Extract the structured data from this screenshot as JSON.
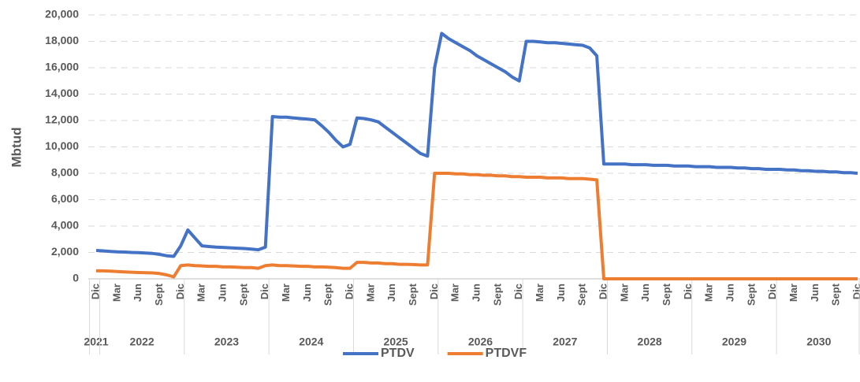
{
  "chart_data": {
    "type": "line",
    "y_label": "Mbtud",
    "categories": [
      "Dic",
      null,
      null,
      "Mar",
      null,
      null,
      "Jun",
      null,
      null,
      "Sept",
      null,
      null,
      "Dic",
      null,
      null,
      "Mar",
      null,
      null,
      "Jun",
      null,
      null,
      "Sept",
      null,
      null,
      "Dic",
      null,
      null,
      "Mar",
      null,
      null,
      "Jun",
      null,
      null,
      "Sept",
      null,
      null,
      "Dic",
      null,
      null,
      "Mar",
      null,
      null,
      "Jun",
      null,
      null,
      "Sept",
      null,
      null,
      "Dic",
      null,
      null,
      "Mar",
      null,
      null,
      "Jun",
      null,
      null,
      "Sept",
      null,
      null,
      "Dic",
      null,
      null,
      "Mar",
      null,
      null,
      "Jun",
      null,
      null,
      "Sept",
      null,
      null,
      "Dic",
      null,
      null,
      "Mar",
      null,
      null,
      "Jun",
      null,
      null,
      "Sept",
      null,
      null,
      "Dic",
      null,
      null,
      "Mar",
      null,
      null,
      "Jun",
      null,
      null,
      "Sept",
      null,
      null,
      "Dic",
      null,
      null,
      "Mar",
      null,
      null,
      "Jun",
      null,
      null,
      "Sept",
      null,
      null,
      "Dic"
    ],
    "groups": [
      {
        "label": "2021",
        "count": 1
      },
      {
        "label": "2022",
        "count": 12
      },
      {
        "label": "2023",
        "count": 12
      },
      {
        "label": "2024",
        "count": 12
      },
      {
        "label": "2025",
        "count": 12
      },
      {
        "label": "2026",
        "count": 12
      },
      {
        "label": "2027",
        "count": 12
      },
      {
        "label": "2028",
        "count": 12
      },
      {
        "label": "2029",
        "count": 12
      },
      {
        "label": "2030",
        "count": 12
      }
    ],
    "series": [
      {
        "name": "PTDV",
        "color": "#4472c4",
        "values": [
          2150,
          2120,
          2080,
          2050,
          2030,
          2000,
          1980,
          1950,
          1920,
          1850,
          1750,
          1700,
          2500,
          3700,
          3100,
          2500,
          2450,
          2400,
          2380,
          2350,
          2320,
          2300,
          2250,
          2200,
          2400,
          12300,
          12250,
          12250,
          12200,
          12150,
          12100,
          12050,
          11600,
          11100,
          10500,
          10000,
          10200,
          12200,
          12150,
          12050,
          11900,
          11500,
          11100,
          10700,
          10300,
          9900,
          9500,
          9300,
          16000,
          18600,
          18200,
          17900,
          17600,
          17300,
          16900,
          16600,
          16300,
          16000,
          15700,
          15300,
          15000,
          18000,
          18000,
          17950,
          17900,
          17900,
          17850,
          17800,
          17750,
          17700,
          17500,
          16900,
          8700,
          8700,
          8700,
          8700,
          8650,
          8650,
          8650,
          8600,
          8600,
          8600,
          8550,
          8550,
          8550,
          8500,
          8500,
          8500,
          8450,
          8450,
          8450,
          8400,
          8400,
          8350,
          8350,
          8300,
          8300,
          8300,
          8250,
          8250,
          8200,
          8200,
          8150,
          8150,
          8100,
          8100,
          8050,
          8050,
          8000
        ]
      },
      {
        "name": "PTDVF",
        "color": "#ed7d31",
        "values": [
          600,
          600,
          580,
          550,
          520,
          500,
          480,
          460,
          450,
          400,
          300,
          150,
          1000,
          1050,
          1000,
          980,
          950,
          950,
          900,
          900,
          880,
          850,
          850,
          800,
          1000,
          1050,
          1000,
          1000,
          980,
          950,
          950,
          900,
          900,
          880,
          850,
          800,
          800,
          1250,
          1250,
          1200,
          1200,
          1150,
          1150,
          1100,
          1100,
          1080,
          1050,
          1050,
          8000,
          8000,
          8000,
          7950,
          7950,
          7900,
          7900,
          7850,
          7850,
          7800,
          7800,
          7750,
          7750,
          7700,
          7700,
          7700,
          7650,
          7650,
          7650,
          7600,
          7600,
          7600,
          7550,
          7500,
          0,
          0,
          0,
          0,
          0,
          0,
          0,
          0,
          0,
          0,
          0,
          0,
          0,
          0,
          0,
          0,
          0,
          0,
          0,
          0,
          0,
          0,
          0,
          0,
          0,
          0,
          0,
          0,
          0,
          0,
          0,
          0,
          0,
          0,
          0,
          0,
          0
        ]
      }
    ],
    "ylim": [
      0,
      20000
    ],
    "yticks": [
      0,
      {
        "value": 2000,
        "label": "2,000"
      },
      {
        "value": 4000,
        "label": "4,000"
      },
      {
        "value": 6000,
        "label": "6,000"
      },
      {
        "value": 8000,
        "label": "8,000"
      },
      {
        "value": 10000,
        "label": "10,000"
      },
      {
        "value": 12000,
        "label": "12,000"
      },
      {
        "value": 14000,
        "label": "14,000"
      },
      {
        "value": 16000,
        "label": "16,000"
      },
      {
        "value": 18000,
        "label": "18,000"
      },
      {
        "value": 20000,
        "label": "20,000"
      }
    ],
    "grid": true,
    "legend": "bottom"
  }
}
